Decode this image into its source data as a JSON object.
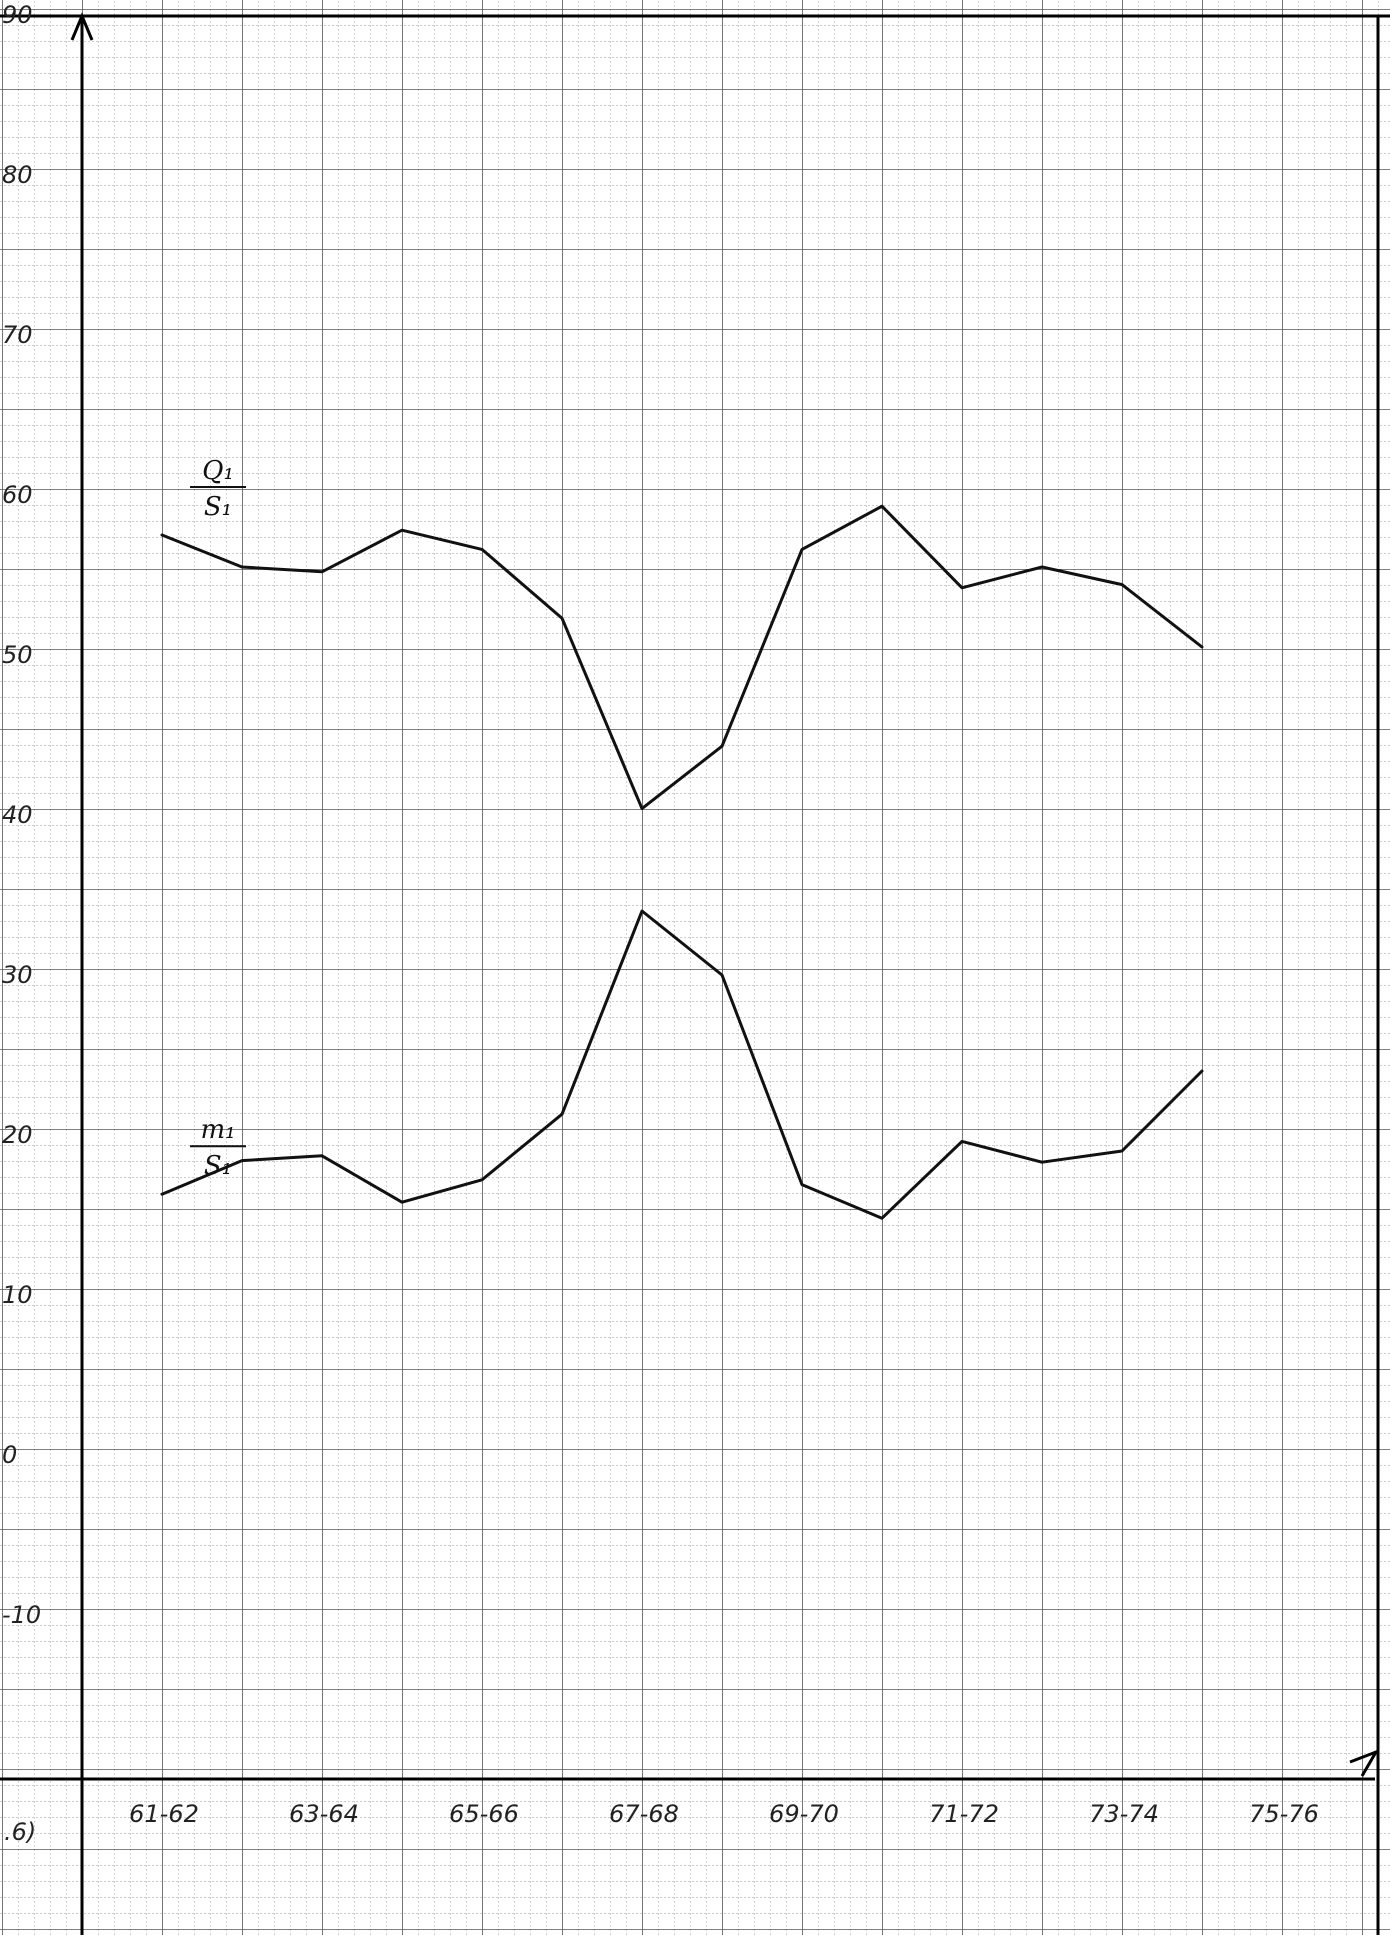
{
  "chart_data": {
    "type": "line",
    "grid": true,
    "x_tick_labels": [
      "61-62",
      "63-64",
      "65-66",
      "67-68",
      "69-70",
      "71-72",
      "73-74",
      "75-76"
    ],
    "x_corner_label": ".6)",
    "y_tick_labels": [
      "-10",
      "0",
      "10",
      "20",
      "30",
      "40",
      "50",
      "60",
      "70",
      "80",
      "90"
    ],
    "ylim": [
      -20,
      100
    ],
    "x": [
      "61-62",
      "62-63",
      "63-64",
      "64-65",
      "65-66",
      "66-67",
      "67-68",
      "68-69",
      "69-70",
      "70-71",
      "71-72",
      "72-73",
      "73-74",
      "74-75"
    ],
    "series": [
      {
        "label_numerator": "Q₁",
        "label_denominator": "S₁",
        "values": [
          57.5,
          55.5,
          55.2,
          57.8,
          56.6,
          52.3,
          40.4,
          44.3,
          56.6,
          59.3,
          54.2,
          55.5,
          54.4,
          50.5
        ]
      },
      {
        "label_numerator": "m₁",
        "label_denominator": "S₁",
        "values": [
          16.3,
          18.4,
          18.7,
          15.8,
          17.2,
          21.3,
          34.0,
          30.0,
          16.9,
          14.8,
          19.6,
          18.3,
          19.0,
          24.0
        ]
      }
    ]
  }
}
